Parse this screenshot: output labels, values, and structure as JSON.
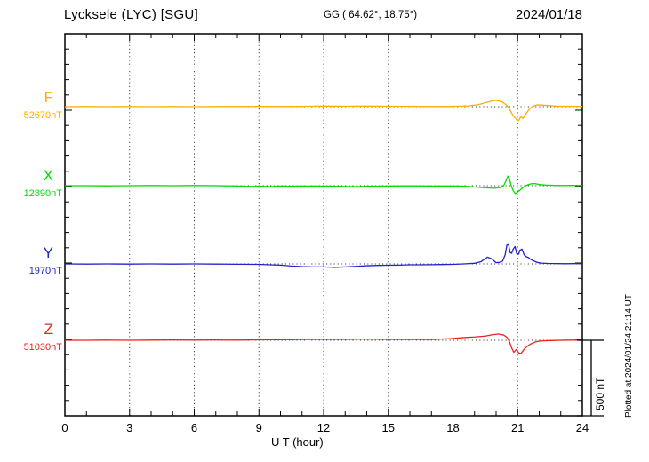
{
  "header": {
    "station": "Lycksele (LYC)  [SGU]",
    "coords": "GG ( 64.62°,  18.75°)",
    "date": "2024/01/18"
  },
  "axes": {
    "xlabel": "U T (hour)",
    "x_ticks": [
      0,
      3,
      6,
      9,
      12,
      15,
      18,
      21,
      24
    ],
    "x_range": [
      0,
      24
    ]
  },
  "scale_bar": {
    "label": "500 nT",
    "nT": 500
  },
  "footer_note": "Plotted at 2024/01/24 21:14 UT",
  "chart_data": {
    "type": "line",
    "title": "Lycksele (LYC) [SGU] magnetogram 2024/01/18",
    "xlabel": "U T (hour)",
    "x_range": [
      0,
      24
    ],
    "x_tick_labels": [
      0,
      3,
      6,
      9,
      12,
      15,
      18,
      21,
      24
    ],
    "grid": "vertical-dotted-every-3h",
    "scale_bar_nT": 500,
    "series": [
      {
        "name": "F",
        "label": "F",
        "baseline_label": "52670nT",
        "baseline_nT": 52670,
        "color": "#FFAD00",
        "points": [
          [
            0,
            0
          ],
          [
            1,
            1
          ],
          [
            2,
            0
          ],
          [
            3,
            1
          ],
          [
            4,
            0
          ],
          [
            5,
            1
          ],
          [
            6,
            0
          ],
          [
            7,
            1
          ],
          [
            8,
            1
          ],
          [
            9,
            2
          ],
          [
            10,
            1
          ],
          [
            11,
            2
          ],
          [
            12,
            4
          ],
          [
            13,
            3
          ],
          [
            14,
            4
          ],
          [
            15,
            3
          ],
          [
            16,
            2
          ],
          [
            17,
            1
          ],
          [
            18,
            2
          ],
          [
            18.7,
            5
          ],
          [
            19.2,
            14
          ],
          [
            19.6,
            30
          ],
          [
            19.9,
            41
          ],
          [
            20.1,
            39
          ],
          [
            20.3,
            30
          ],
          [
            20.5,
            8
          ],
          [
            20.65,
            -25
          ],
          [
            20.8,
            -62
          ],
          [
            20.95,
            -85
          ],
          [
            21.05,
            -92
          ],
          [
            21.15,
            -66
          ],
          [
            21.25,
            -78
          ],
          [
            21.4,
            -45
          ],
          [
            21.55,
            -15
          ],
          [
            21.7,
            4
          ],
          [
            21.9,
            12
          ],
          [
            22.2,
            10
          ],
          [
            22.6,
            6
          ],
          [
            23,
            3
          ],
          [
            23.5,
            2
          ],
          [
            24,
            2
          ]
        ]
      },
      {
        "name": "X",
        "label": "X",
        "baseline_label": "12890nT",
        "baseline_nT": 12890,
        "color": "#00DB00",
        "points": [
          [
            0,
            0
          ],
          [
            1,
            0
          ],
          [
            2,
            -1
          ],
          [
            3,
            0
          ],
          [
            4,
            1
          ],
          [
            5,
            0
          ],
          [
            6,
            1
          ],
          [
            7,
            0
          ],
          [
            8,
            -2
          ],
          [
            8.7,
            -5
          ],
          [
            9,
            -3
          ],
          [
            9.5,
            -6
          ],
          [
            10,
            -2
          ],
          [
            10.6,
            -4
          ],
          [
            11,
            -2
          ],
          [
            12,
            -2
          ],
          [
            13,
            -5
          ],
          [
            13.5,
            -6
          ],
          [
            14,
            -4
          ],
          [
            15,
            -2
          ],
          [
            16,
            -1
          ],
          [
            17,
            -2
          ],
          [
            18,
            -2
          ],
          [
            18.5,
            -3
          ],
          [
            19,
            -8
          ],
          [
            19.5,
            -14
          ],
          [
            19.9,
            -17
          ],
          [
            20.2,
            -12
          ],
          [
            20.35,
            0
          ],
          [
            20.45,
            30
          ],
          [
            20.55,
            64
          ],
          [
            20.62,
            45
          ],
          [
            20.7,
            0
          ],
          [
            20.8,
            -36
          ],
          [
            20.9,
            -53
          ],
          [
            21.0,
            -42
          ],
          [
            21.1,
            -30
          ],
          [
            21.25,
            -12
          ],
          [
            21.4,
            2
          ],
          [
            21.6,
            12
          ],
          [
            21.8,
            14
          ],
          [
            22.0,
            8
          ],
          [
            22.3,
            4
          ],
          [
            22.7,
            2
          ],
          [
            23,
            1
          ],
          [
            23.5,
            2
          ],
          [
            24,
            1
          ]
        ]
      },
      {
        "name": "Y",
        "label": "Y",
        "baseline_label": "1970nT",
        "baseline_nT": 1970,
        "color": "#2222CC",
        "points": [
          [
            0,
            0
          ],
          [
            1,
            -1
          ],
          [
            2,
            0
          ],
          [
            3,
            -1
          ],
          [
            4,
            0
          ],
          [
            5,
            -1
          ],
          [
            6,
            0
          ],
          [
            7,
            -1
          ],
          [
            8,
            -2
          ],
          [
            9,
            -3
          ],
          [
            9.5,
            -6
          ],
          [
            10,
            -8
          ],
          [
            10.5,
            -14
          ],
          [
            11,
            -18
          ],
          [
            11.5,
            -20
          ],
          [
            12,
            -20
          ],
          [
            12.5,
            -23
          ],
          [
            13,
            -20
          ],
          [
            13.5,
            -16
          ],
          [
            14,
            -12
          ],
          [
            14.5,
            -10
          ],
          [
            15,
            -9
          ],
          [
            15.5,
            -8
          ],
          [
            16,
            -6
          ],
          [
            16.5,
            -6
          ],
          [
            17,
            -5
          ],
          [
            17.5,
            -4
          ],
          [
            18,
            -3
          ],
          [
            18.5,
            0
          ],
          [
            19,
            4
          ],
          [
            19.3,
            15
          ],
          [
            19.6,
            45
          ],
          [
            19.8,
            33
          ],
          [
            20.0,
            8
          ],
          [
            20.15,
            10
          ],
          [
            20.3,
            18
          ],
          [
            20.42,
            60
          ],
          [
            20.5,
            125
          ],
          [
            20.58,
            128
          ],
          [
            20.65,
            75
          ],
          [
            20.72,
            70
          ],
          [
            20.8,
            100
          ],
          [
            20.88,
            115
          ],
          [
            20.95,
            70
          ],
          [
            21.05,
            65
          ],
          [
            21.1,
            90
          ],
          [
            21.2,
            98
          ],
          [
            21.3,
            60
          ],
          [
            21.4,
            48
          ],
          [
            21.5,
            42
          ],
          [
            21.6,
            30
          ],
          [
            21.75,
            20
          ],
          [
            21.9,
            10
          ],
          [
            22.1,
            5
          ],
          [
            22.4,
            3
          ],
          [
            22.8,
            2
          ],
          [
            23.2,
            1
          ],
          [
            23.6,
            2
          ],
          [
            24,
            1
          ]
        ]
      },
      {
        "name": "Z",
        "label": "Z",
        "baseline_label": "51030nT",
        "baseline_nT": 51030,
        "color": "#E82222",
        "points": [
          [
            0,
            0
          ],
          [
            1,
            0
          ],
          [
            2,
            1
          ],
          [
            3,
            0
          ],
          [
            4,
            1
          ],
          [
            5,
            2
          ],
          [
            6,
            1
          ],
          [
            7,
            2
          ],
          [
            8,
            1
          ],
          [
            9,
            3
          ],
          [
            10,
            4
          ],
          [
            11,
            5
          ],
          [
            12,
            6
          ],
          [
            13,
            6
          ],
          [
            14,
            8
          ],
          [
            15,
            6
          ],
          [
            16,
            5
          ],
          [
            17,
            5
          ],
          [
            18,
            12
          ],
          [
            18.5,
            18
          ],
          [
            19,
            22
          ],
          [
            19.5,
            28
          ],
          [
            19.8,
            36
          ],
          [
            20.1,
            41
          ],
          [
            20.35,
            35
          ],
          [
            20.5,
            20
          ],
          [
            20.62,
            -10
          ],
          [
            20.72,
            -50
          ],
          [
            20.82,
            -80
          ],
          [
            20.95,
            -60
          ],
          [
            21.05,
            -85
          ],
          [
            21.15,
            -88
          ],
          [
            21.3,
            -60
          ],
          [
            21.45,
            -40
          ],
          [
            21.6,
            -25
          ],
          [
            21.8,
            -12
          ],
          [
            22.0,
            -6
          ],
          [
            22.3,
            -3
          ],
          [
            22.7,
            -1
          ],
          [
            23,
            0
          ],
          [
            23.5,
            1
          ],
          [
            24,
            1
          ]
        ]
      }
    ]
  }
}
